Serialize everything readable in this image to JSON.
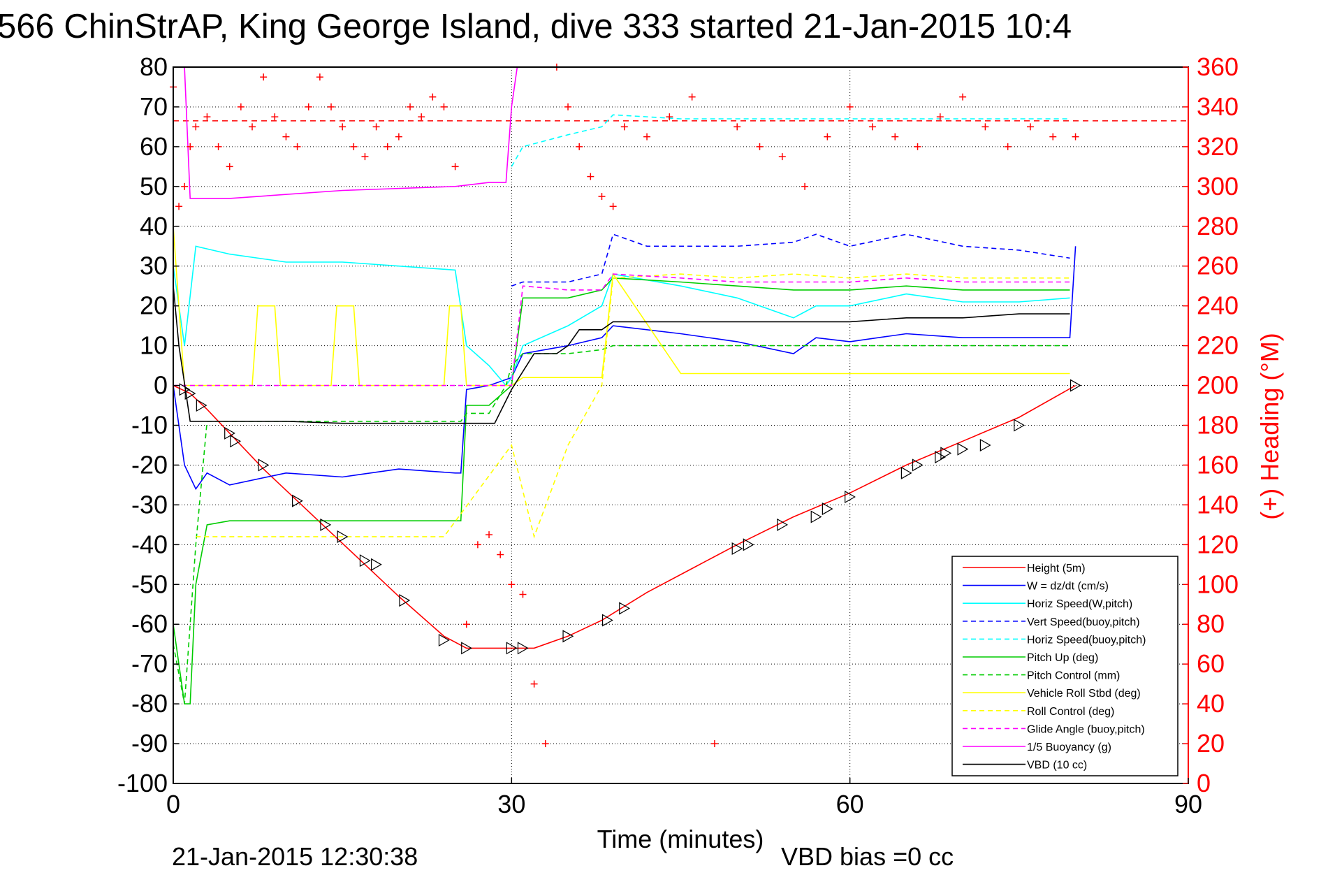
{
  "chart_data": {
    "type": "line",
    "title": "566 ChinStrAP, King George Island, dive 333 started 21-Jan-2015 10:4",
    "xlabel": "Time (minutes)",
    "ylabel_right": "(+) Heading (°M)",
    "xlim": [
      0,
      90
    ],
    "ylim": [
      -100,
      80
    ],
    "ylim_right": [
      0,
      360
    ],
    "x_ticks": [
      "0",
      "30",
      "60",
      "90"
    ],
    "y_ticks": [
      "80",
      "70",
      "60",
      "50",
      "40",
      "30",
      "20",
      "10",
      "0",
      "-10",
      "-20",
      "-30",
      "-40",
      "-50",
      "-60",
      "-70",
      "-80",
      "-90",
      "-100"
    ],
    "y_ticks_right": [
      "360",
      "340",
      "320",
      "300",
      "280",
      "260",
      "240",
      "220",
      "200",
      "180",
      "160",
      "140",
      "120",
      "100",
      "80",
      "60",
      "40",
      "20",
      "0"
    ],
    "grid": true,
    "legend_position": "bottom-right",
    "footer_left": "21-Jan-2015 12:30:38",
    "footer_right": "VBD bias =0 cc",
    "reference_line_heading": 333,
    "series": [
      {
        "name": "Height (5m)",
        "color": "#ff0000",
        "style": "solid",
        "x": [
          0,
          1.5,
          3,
          5,
          8,
          11,
          14,
          17,
          20,
          24,
          26,
          28,
          30,
          32,
          35,
          38,
          42,
          46,
          50,
          55,
          60,
          65,
          70,
          75,
          80
        ],
        "y": [
          0,
          -2,
          -6,
          -12,
          -21,
          -29,
          -37,
          -45,
          -53,
          -63,
          -66,
          -66,
          -66,
          -66,
          -63,
          -59,
          -52,
          -46,
          -40,
          -33,
          -27,
          -20,
          -14,
          -8,
          0
        ]
      },
      {
        "name": "W = dz/dt (cm/s)",
        "color": "#0000ff",
        "style": "solid",
        "x": [
          0,
          1,
          2,
          3,
          5,
          10,
          15,
          20,
          25,
          25.5,
          26,
          28,
          30,
          31,
          35,
          38,
          39,
          45,
          50,
          55,
          57,
          60,
          65,
          70,
          75,
          79.5,
          80
        ],
        "y": [
          0,
          -20,
          -26,
          -22,
          -25,
          -22,
          -23,
          -21,
          -22,
          -22,
          -1,
          0,
          2,
          8,
          10,
          12,
          15,
          13,
          11,
          8,
          12,
          11,
          13,
          12,
          12,
          12,
          35
        ]
      },
      {
        "name": "Horiz Speed(W,pitch)",
        "color": "#00ffff",
        "style": "solid",
        "x": [
          0,
          1,
          2,
          5,
          10,
          15,
          20,
          25,
          26,
          28,
          29.5,
          30,
          31,
          35,
          38,
          39,
          45,
          50,
          55,
          57,
          60,
          65,
          70,
          75,
          79.5
        ],
        "y": [
          30,
          10,
          35,
          33,
          31,
          31,
          30,
          29,
          10,
          5,
          0,
          2,
          10,
          15,
          20,
          28,
          25,
          22,
          17,
          20,
          20,
          23,
          21,
          21,
          22
        ]
      },
      {
        "name": "Vert Speed(buoy,pitch)",
        "color": "#0000ff",
        "style": "dashed",
        "x": [
          30,
          31,
          35,
          38,
          39,
          42,
          45,
          50,
          55,
          57,
          60,
          65,
          70,
          75,
          79.5
        ],
        "y": [
          25,
          26,
          26,
          28,
          38,
          35,
          35,
          35,
          36,
          38,
          35,
          38,
          35,
          34,
          32
        ]
      },
      {
        "name": "Horiz Speed(buoy,pitch)",
        "color": "#00ffff",
        "style": "dashed",
        "x": [
          30,
          31,
          35,
          38,
          39,
          45,
          50,
          55,
          60,
          65,
          70,
          75,
          79.5
        ],
        "y": [
          55,
          60,
          63,
          65,
          68,
          67,
          67,
          67,
          67,
          67,
          67,
          67,
          67
        ]
      },
      {
        "name": "Pitch Up (deg)",
        "color": "#00cc00",
        "style": "solid",
        "x": [
          0,
          1,
          1.5,
          2,
          3,
          5,
          10,
          15,
          20,
          25,
          25.5,
          26,
          28,
          30,
          31,
          35,
          38,
          39,
          45,
          50,
          55,
          60,
          65,
          70,
          75,
          79.5
        ],
        "y": [
          -60,
          -80,
          -80,
          -50,
          -35,
          -34,
          -34,
          -34,
          -34,
          -34,
          -34,
          -5,
          -5,
          0,
          22,
          22,
          24,
          27,
          26,
          25,
          24,
          24,
          25,
          24,
          24,
          24
        ]
      },
      {
        "name": "Pitch Control (mm)",
        "color": "#00cc00",
        "style": "dashed",
        "x": [
          0,
          1,
          2,
          3,
          25.5,
          26,
          28,
          29.5,
          30,
          31,
          35,
          38,
          39,
          79.5
        ],
        "y": [
          -65,
          -80,
          -40,
          -9,
          -9,
          -7,
          -7,
          0,
          5,
          8,
          8,
          9,
          10,
          10
        ]
      },
      {
        "name": "Vehicle Roll Stbd (deg)",
        "color": "#ffff00",
        "style": "solid",
        "x": [
          0,
          1,
          2,
          5,
          7,
          7.5,
          9,
          9.5,
          14,
          14.5,
          16,
          16.5,
          24,
          24.5,
          25.5,
          26,
          30,
          31,
          36,
          38,
          39,
          45,
          50,
          55,
          60,
          65,
          70,
          75,
          79.5
        ],
        "y": [
          40,
          0,
          0,
          0,
          0,
          20,
          20,
          0,
          0,
          20,
          20,
          0,
          0,
          20,
          20,
          0,
          0,
          2,
          2,
          2,
          28,
          3,
          3,
          3,
          3,
          3,
          3,
          3,
          3
        ]
      },
      {
        "name": "Roll Control (deg)",
        "color": "#ffff00",
        "style": "dashed",
        "x": [
          2,
          4,
          8,
          12,
          18,
          24,
          30,
          32,
          35,
          38,
          39,
          45,
          50,
          55,
          60,
          65,
          70,
          75,
          79.5
        ],
        "y": [
          -38,
          -38,
          -38,
          -38,
          -38,
          -38,
          -15,
          -38,
          -15,
          0,
          27,
          28,
          27,
          28,
          27,
          28,
          27,
          27,
          27
        ]
      },
      {
        "name": "Glide Angle (buoy,pitch)",
        "color": "#ff00ff",
        "style": "dashed",
        "x": [
          0,
          28,
          30,
          31,
          35,
          38,
          39,
          45,
          50,
          55,
          60,
          65,
          70,
          75,
          79.5
        ],
        "y": [
          0,
          0,
          0,
          25,
          24,
          24,
          28,
          27,
          26,
          26,
          26,
          27,
          26,
          26,
          26
        ]
      },
      {
        "name": "1/5 Buoyancy (g)",
        "color": "#ff00ff",
        "style": "solid",
        "x": [
          0,
          1,
          1.5,
          5,
          15,
          25,
          28,
          29.5,
          30,
          30.5
        ],
        "y": [
          80,
          80,
          47,
          47,
          49,
          50,
          51,
          51,
          70,
          80
        ]
      },
      {
        "name": "VBD (10 cc)",
        "color": "#000000",
        "style": "solid",
        "x": [
          0,
          0.5,
          1.5,
          5,
          10,
          15,
          20,
          25,
          28.5,
          30,
          32,
          34,
          35,
          36,
          38,
          39,
          45,
          50,
          55,
          60,
          65,
          70,
          75,
          79.5
        ],
        "y": [
          25,
          10,
          -9,
          -9,
          -9,
          -9.5,
          -9.5,
          -9.5,
          -9.5,
          -1,
          8,
          8,
          10,
          14,
          14,
          16,
          16,
          16,
          16,
          16,
          17,
          17,
          18,
          18
        ]
      }
    ],
    "heading_series": {
      "name": "Heading",
      "color": "#ff0000",
      "marker": "+",
      "x": [
        0,
        0.5,
        1,
        1.5,
        2,
        3,
        4,
        5,
        6,
        7,
        8,
        9,
        10,
        11,
        12,
        13,
        14,
        15,
        16,
        17,
        18,
        19,
        20,
        21,
        22,
        23,
        24,
        25,
        26,
        27,
        28,
        29,
        30,
        31,
        32,
        33,
        34,
        35,
        36,
        37,
        38,
        39,
        40,
        42,
        44,
        46,
        48,
        50,
        52,
        54,
        56,
        58,
        60,
        62,
        64,
        66,
        68,
        70,
        72,
        74,
        76,
        78,
        80
      ],
      "y": [
        350,
        290,
        300,
        320,
        330,
        335,
        320,
        310,
        340,
        330,
        355,
        335,
        325,
        320,
        340,
        355,
        340,
        330,
        320,
        315,
        330,
        320,
        325,
        340,
        335,
        345,
        340,
        310,
        80,
        120,
        125,
        115,
        100,
        95,
        50,
        20,
        360,
        340,
        320,
        305,
        295,
        290,
        330,
        325,
        335,
        345,
        20,
        330,
        320,
        315,
        300,
        325,
        340,
        330,
        325,
        320,
        335,
        345,
        330,
        320,
        330,
        325,
        325
      ]
    },
    "direction_markers": {
      "x": [
        1,
        1.5,
        2.5,
        5,
        5.5,
        8,
        11,
        13.5,
        15,
        17,
        18,
        20.5,
        24,
        26,
        30,
        31,
        35,
        38.5,
        40,
        50,
        51,
        54,
        57,
        58,
        60,
        65,
        66,
        68,
        68.5,
        70,
        72,
        75,
        80
      ],
      "y": [
        -1,
        -2,
        -5,
        -12,
        -14,
        -20,
        -29,
        -35,
        -38,
        -44,
        -45,
        -54,
        -64,
        -66,
        -66,
        -66,
        -63,
        -59,
        -56,
        -41,
        -40,
        -35,
        -33,
        -31,
        -28,
        -22,
        -20,
        -18,
        -17,
        -16,
        -15,
        -10,
        0
      ]
    }
  }
}
